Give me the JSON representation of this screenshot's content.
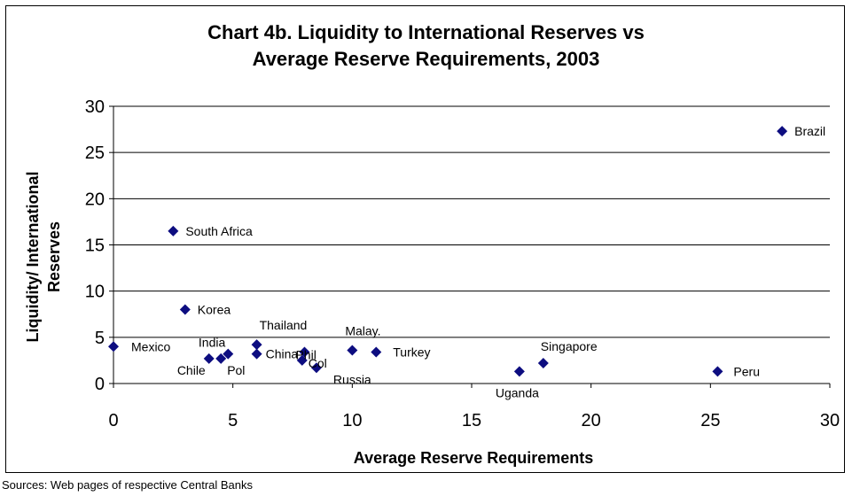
{
  "chart_data": {
    "type": "scatter",
    "title_line1": "Chart 4b. Liquidity to International Reserves vs",
    "title_line2": "Average Reserve Requirements, 2003",
    "xlabel": "Average Reserve Requirements",
    "ylabel_line1": "Liquidity/ International",
    "ylabel_line2": "Reserves",
    "xlim": [
      0,
      30
    ],
    "ylim": [
      0,
      30
    ],
    "x_ticks": [
      "0",
      "5",
      "10",
      "15",
      "20",
      "25",
      "30"
    ],
    "y_ticks": [
      "0",
      "5",
      "10",
      "15",
      "20",
      "25",
      "30"
    ],
    "grid": "horizontal",
    "marker_color": "#0d0d80",
    "points": [
      {
        "label": "Brazil",
        "x": 28.0,
        "y": 27.3
      },
      {
        "label": "South Africa",
        "x": 2.5,
        "y": 16.5
      },
      {
        "label": "Korea",
        "x": 3.0,
        "y": 8.0
      },
      {
        "label": "Mexico",
        "x": 0.0,
        "y": 4.0
      },
      {
        "label": "Thailand",
        "x": 6.0,
        "y": 4.2
      },
      {
        "label": "India",
        "x": 4.8,
        "y": 3.2
      },
      {
        "label": "Chile",
        "x": 4.0,
        "y": 2.7
      },
      {
        "label": "Pol",
        "x": 4.5,
        "y": 2.7
      },
      {
        "label": "China",
        "x": 6.0,
        "y": 3.2
      },
      {
        "label": "Phil",
        "x": 8.0,
        "y": 3.4
      },
      {
        "label": "Col",
        "x": 7.9,
        "y": 2.5
      },
      {
        "label": "Russia",
        "x": 8.5,
        "y": 1.7
      },
      {
        "label": "Malay.",
        "x": 10.0,
        "y": 3.6
      },
      {
        "label": "Turkey",
        "x": 11.0,
        "y": 3.4
      },
      {
        "label": "Singapore",
        "x": 18.0,
        "y": 2.2
      },
      {
        "label": "Uganda",
        "x": 17.0,
        "y": 1.3
      },
      {
        "label": "Peru",
        "x": 25.3,
        "y": 1.3
      }
    ]
  },
  "source": "Sources: Web pages of respective Central Banks"
}
